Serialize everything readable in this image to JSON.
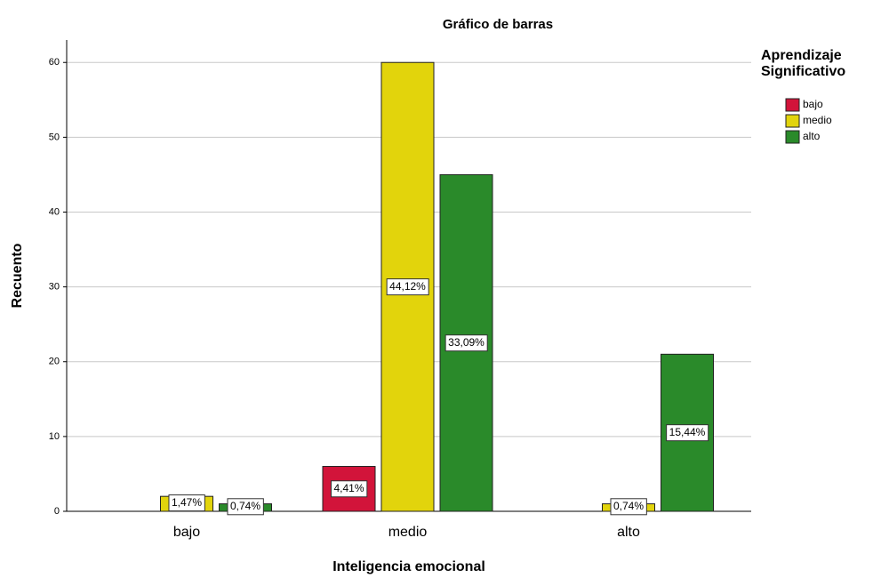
{
  "chart_data": {
    "type": "bar",
    "title": "Gráfico de barras",
    "x_label": "Inteligencia emocional",
    "y_label": "Recuento",
    "legend_title": "Aprendizaje Significativo",
    "categories": [
      "bajo",
      "medio",
      "alto"
    ],
    "series": [
      {
        "name": "bajo",
        "color": "#d2143a",
        "values": [
          0,
          6,
          0
        ],
        "value_labels": [
          null,
          "4,41%",
          null
        ]
      },
      {
        "name": "medio",
        "color": "#e2d40c",
        "values": [
          2,
          60,
          1
        ],
        "value_labels": [
          "1,47%",
          "44,12%",
          "0,74%"
        ]
      },
      {
        "name": "alto",
        "color": "#2a8a2a",
        "values": [
          1,
          45,
          21
        ],
        "value_labels": [
          "0,74%",
          "33,09%",
          "15,44%"
        ]
      }
    ],
    "ylim": [
      0,
      63
    ],
    "yticks": [
      0,
      10,
      20,
      30,
      40,
      50,
      60
    ],
    "grid": true,
    "legend": "right"
  }
}
